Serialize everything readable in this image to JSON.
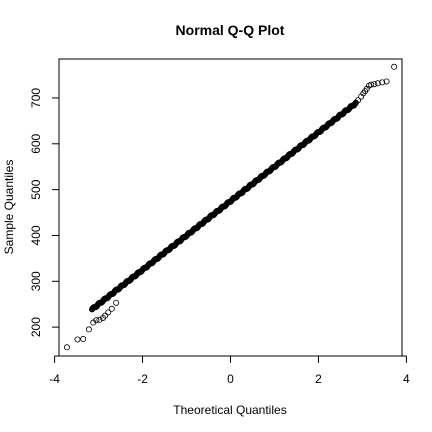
{
  "chart_data": {
    "type": "scatter",
    "title": "Normal Q-Q Plot",
    "xlabel": "Theoretical Quantiles",
    "ylabel": "Sample Quantiles",
    "xlim": [
      -3.9,
      3.9
    ],
    "ylim": [
      137,
      785
    ],
    "x_ticks": [
      -4,
      -2,
      0,
      2,
      4
    ],
    "y_ticks": [
      200,
      300,
      400,
      500,
      600,
      700
    ],
    "x_tick_labels": [
      "-4",
      "-2",
      "0",
      "2",
      "4"
    ],
    "y_tick_labels": [
      "200",
      "300",
      "400",
      "500",
      "600",
      "700"
    ],
    "grid": false,
    "marker": "open-circle",
    "trend": {
      "slope": 75,
      "intercept": 475,
      "x_min": -3.15,
      "x_max": 2.85,
      "n": 700
    },
    "points": [
      {
        "x": -3.72,
        "y": 156
      },
      {
        "x": -3.48,
        "y": 173
      },
      {
        "x": -3.35,
        "y": 174
      },
      {
        "x": -3.22,
        "y": 195
      },
      {
        "x": -3.12,
        "y": 210
      },
      {
        "x": -3.05,
        "y": 215
      },
      {
        "x": -2.98,
        "y": 216
      },
      {
        "x": -2.9,
        "y": 220
      },
      {
        "x": -2.85,
        "y": 225
      },
      {
        "x": -2.78,
        "y": 232
      },
      {
        "x": -2.7,
        "y": 240
      },
      {
        "x": -2.6,
        "y": 253
      },
      {
        "x": 2.9,
        "y": 695
      },
      {
        "x": 2.97,
        "y": 703
      },
      {
        "x": 3.02,
        "y": 710
      },
      {
        "x": 3.06,
        "y": 715
      },
      {
        "x": 3.1,
        "y": 720
      },
      {
        "x": 3.15,
        "y": 727
      },
      {
        "x": 3.2,
        "y": 729
      },
      {
        "x": 3.27,
        "y": 730
      },
      {
        "x": 3.35,
        "y": 732
      },
      {
        "x": 3.45,
        "y": 734
      },
      {
        "x": 3.55,
        "y": 736
      },
      {
        "x": 3.72,
        "y": 768
      }
    ]
  }
}
